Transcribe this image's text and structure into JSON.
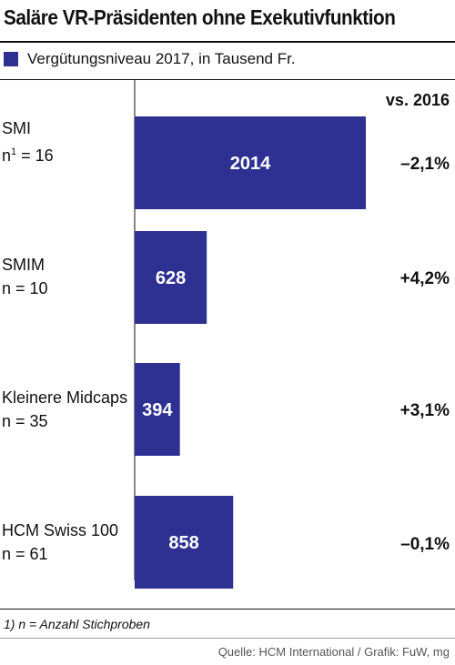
{
  "title": "Saläre VR-Präsidenten ohne Exekutivfunktion",
  "legend": {
    "label": "Vergütungsniveau 2017, in Tausend Fr.",
    "color": "#2e3192"
  },
  "change_header": "vs. 2016",
  "categories": [
    {
      "name": "SMI",
      "n_prefix": "n",
      "n_sup": "1",
      "n_suffix": " = 16",
      "change": "–2,1%"
    },
    {
      "name": "SMIM",
      "n_prefix": "n",
      "n_sup": "",
      "n_suffix": " = 10",
      "change": "+4,2%"
    },
    {
      "name": "Kleinere Midcaps",
      "n_prefix": "n",
      "n_sup": "",
      "n_suffix": " = 35",
      "change": "+3,1%"
    },
    {
      "name": "HCM Swiss 100",
      "n_prefix": "n",
      "n_sup": "",
      "n_suffix": " = 61",
      "change": "–0,1%"
    }
  ],
  "footnote": "1) n = Anzahl Stichproben",
  "source": "Quelle: HCM International / Grafik: FuW, mg",
  "chart_data": {
    "type": "bar",
    "orientation": "horizontal",
    "title": "Saläre VR-Präsidenten ohne Exekutivfunktion",
    "categories": [
      "SMI",
      "SMIM",
      "Kleinere Midcaps",
      "HCM Swiss 100"
    ],
    "series": [
      {
        "name": "Vergütungsniveau 2017, in Tausend Fr.",
        "values": [
          2014,
          628,
          394,
          858
        ],
        "color": "#2e3192"
      }
    ],
    "data_labels": [
      "2014",
      "628",
      "394",
      "858"
    ],
    "annotations": {
      "header": "vs. 2016",
      "changes": [
        "–2,1%",
        "+4,2%",
        "+3,1%",
        "–0,1%"
      ]
    },
    "xlim": [
      0,
      2014
    ],
    "grid": false,
    "legend": "top-left"
  }
}
